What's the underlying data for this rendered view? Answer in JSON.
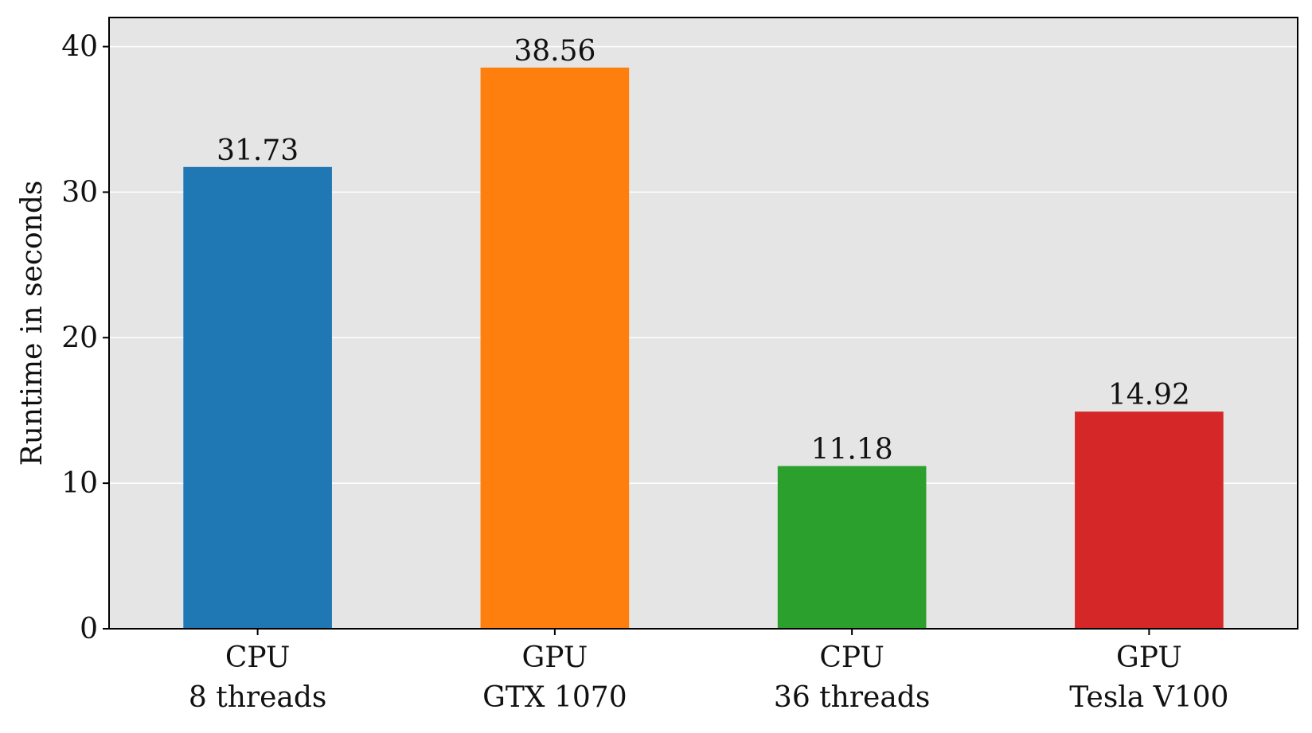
{
  "chart_data": {
    "type": "bar",
    "categories": [
      [
        "CPU",
        "8 threads"
      ],
      [
        "GPU",
        "GTX 1070"
      ],
      [
        "CPU",
        "36 threads"
      ],
      [
        "GPU",
        "Tesla V100"
      ]
    ],
    "values": [
      31.73,
      38.56,
      11.18,
      14.92
    ],
    "value_labels": [
      "31.73",
      "38.56",
      "11.18",
      "14.92"
    ],
    "colors": [
      "#1f77b4",
      "#ff7f0e",
      "#2ca02c",
      "#d62728"
    ],
    "title": "",
    "xlabel": "",
    "ylabel": "Runtime in seconds",
    "ylim": [
      0,
      42
    ],
    "yticks": [
      0,
      10,
      20,
      30,
      40
    ],
    "grid": true,
    "background_color": "#e5e5e5",
    "grid_color": "#ffffff"
  }
}
